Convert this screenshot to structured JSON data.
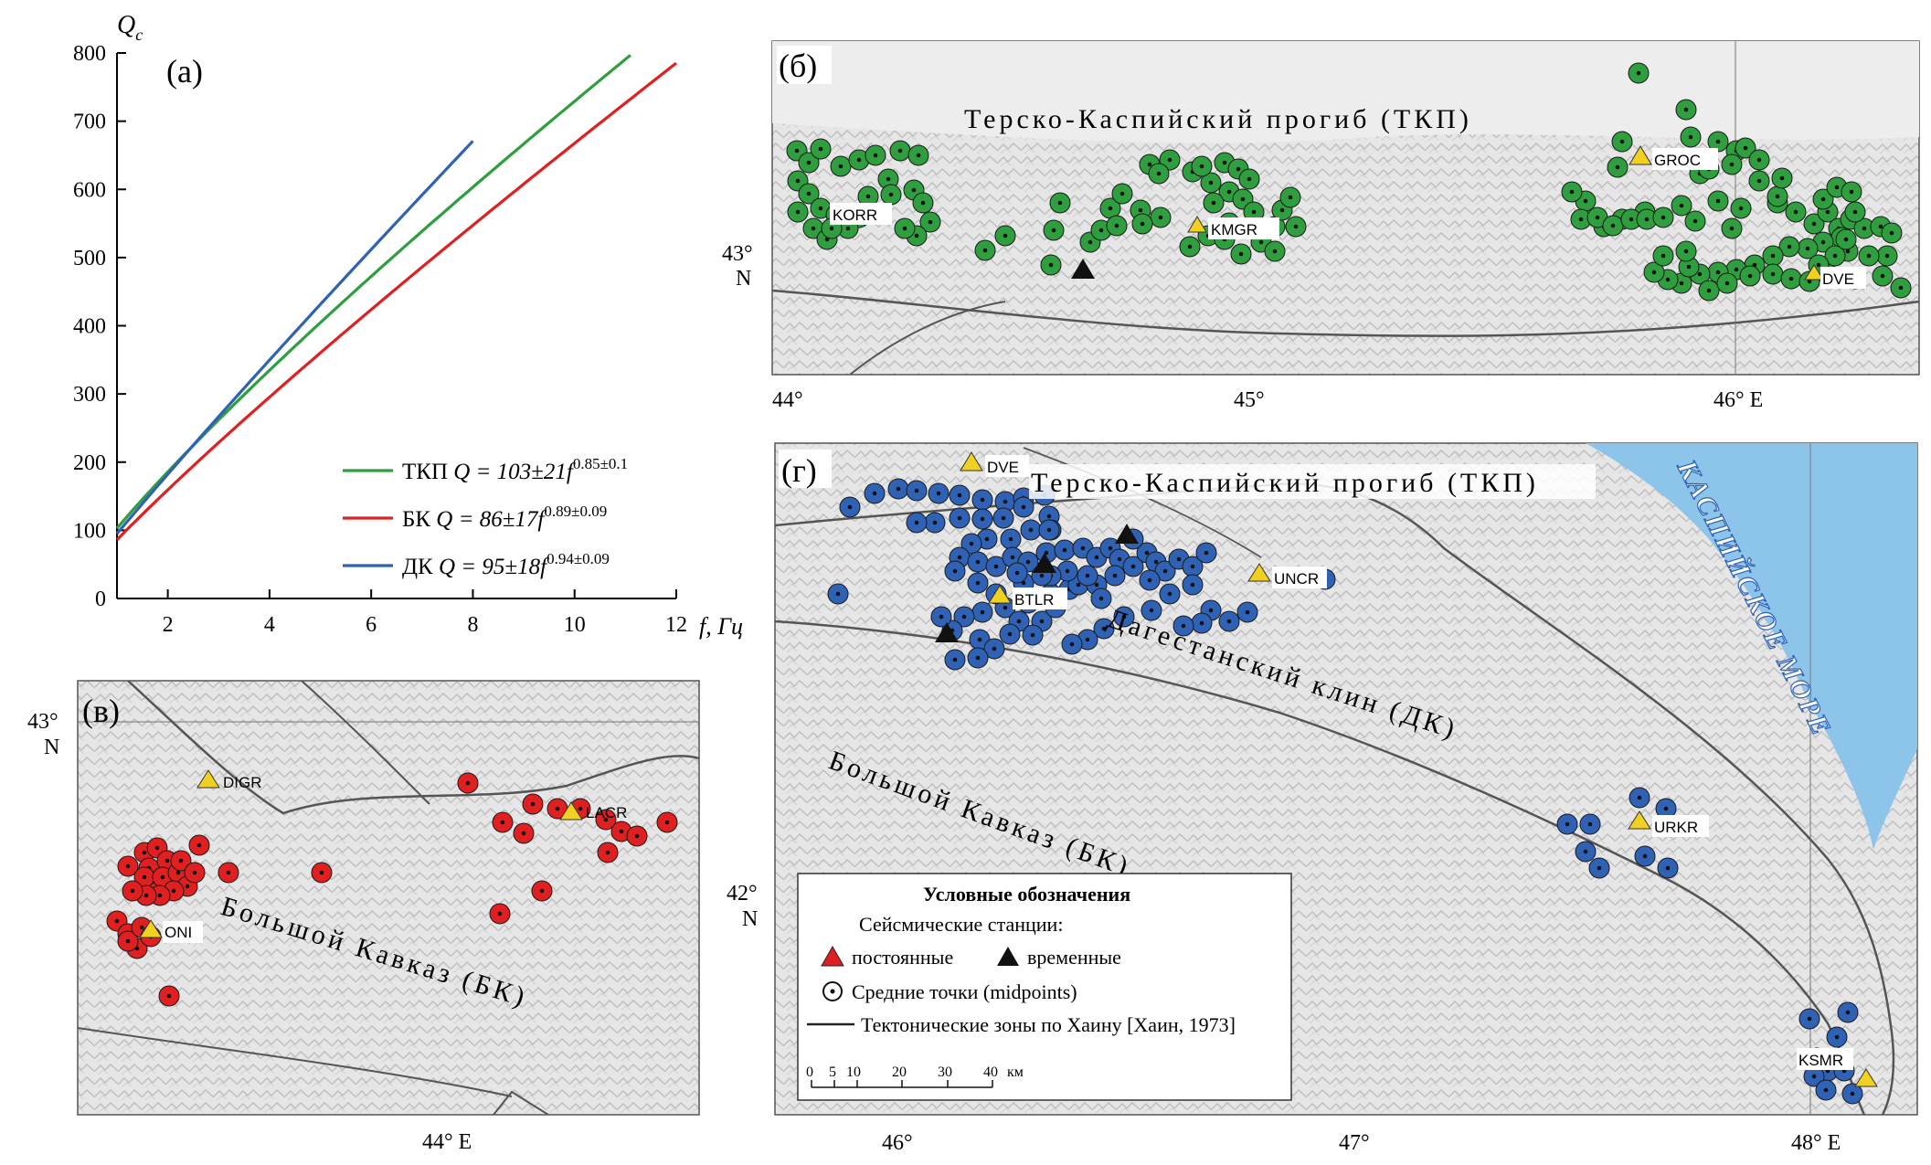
{
  "colors": {
    "tkp": "#2e9e3e",
    "bk": "#e02020",
    "dk": "#2f62b5",
    "station_permanent": "#f0d020",
    "station_temporary": "#111111",
    "sea": "#8cc4ea",
    "relief": "#d6d6d6",
    "fault": "#555555"
  },
  "panel_a": {
    "letter": "(а)",
    "ylabel": "Q",
    "ylabel_sub": "c",
    "xlabel": "f, Гц",
    "chart_data": {
      "type": "line",
      "xlim": [
        1,
        12
      ],
      "ylim": [
        0,
        800
      ],
      "xticks": [
        2,
        4,
        6,
        8,
        10,
        12
      ],
      "yticks": [
        0,
        100,
        200,
        300,
        400,
        500,
        600,
        700,
        800
      ],
      "series": [
        {
          "key": "tkp",
          "name": "ТКП",
          "a": 103,
          "b": 0.85,
          "xmax": 11.1,
          "formula": "Q = 103±21f",
          "exp": "0.85±0.1"
        },
        {
          "key": "bk",
          "name": "БК",
          "a": 86,
          "b": 0.89,
          "xmax": 12.0,
          "formula": "Q = 86±17f",
          "exp": "0.89±0.09"
        },
        {
          "key": "dk",
          "name": "ДК",
          "a": 95,
          "b": 0.94,
          "xmax": 8.0,
          "formula": "Q = 95±18f",
          "exp": "0.94±0.09"
        }
      ]
    }
  },
  "panel_b": {
    "letter": "(б)",
    "title": "Терско-Каспийский прогиб (ТКП)",
    "lat_label": "43°",
    "lat_n": "N",
    "lon_labels": [
      "44°",
      "45°",
      "46° E"
    ],
    "stations": [
      {
        "code": "KORR",
        "type": "label"
      },
      {
        "code": "KMGR",
        "type": "permanent"
      },
      {
        "code": "GROC",
        "type": "permanent"
      },
      {
        "code": "DVE",
        "type": "permanent"
      }
    ]
  },
  "panel_v": {
    "letter": "(в)",
    "title": "Большой Кавказ (БК)",
    "lat_label": "43°",
    "lat_n": "N",
    "lon_label": "44° E",
    "stations": [
      {
        "code": "DIGR",
        "type": "permanent"
      },
      {
        "code": "LACR",
        "type": "permanent"
      },
      {
        "code": "ONI",
        "type": "permanent"
      }
    ]
  },
  "panel_g": {
    "letter": "(г)",
    "title": "Терско-Каспийский прогиб (ТКП)",
    "dk_label": "Дагестанский клин (ДК)",
    "bk_label": "Большой Кавказ (БК)",
    "sea_label": "КАСПИЙСКОЕ МОРЕ",
    "lat_label": "42°",
    "lat_n": "N",
    "lon_labels": [
      "46°",
      "47°",
      "48° E"
    ],
    "stations": [
      {
        "code": "DVE",
        "type": "permanent"
      },
      {
        "code": "BTLR",
        "type": "permanent"
      },
      {
        "code": "UNCR",
        "type": "permanent"
      },
      {
        "code": "URKR",
        "type": "permanent"
      },
      {
        "code": "KSMR",
        "type": "permanent"
      }
    ],
    "scale": {
      "ticks": [
        "0",
        "5",
        "10",
        "20",
        "30",
        "40"
      ],
      "unit": "км"
    }
  },
  "legend": {
    "title": "Условные обозначения",
    "stations_header": "Сейсмические станции:",
    "permanent": "постоянные",
    "temporary": "временные",
    "midpoints": "Средние точки (midpoints)",
    "faults": "Тектонические зоны по Хаину [Хаин, 1973]"
  }
}
